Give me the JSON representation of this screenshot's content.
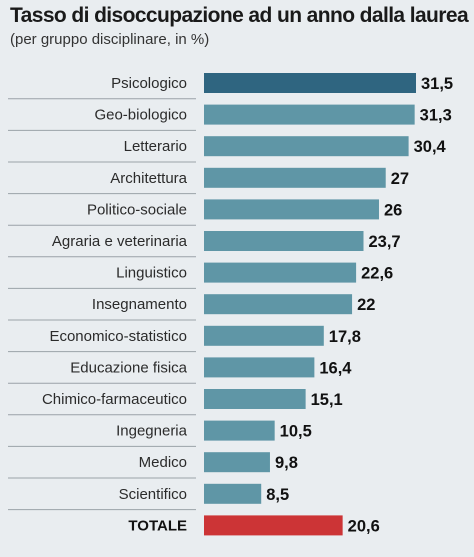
{
  "title": "Tasso di disoccupazione ad un anno dalla laurea",
  "subtitle": "(per gruppo disciplinare, in %)",
  "colors": {
    "highlight": "#2f6580",
    "bar": "#5f96a6",
    "total": "#cc3436",
    "background": "#e9edf0"
  },
  "chart_data": {
    "type": "bar",
    "orientation": "horizontal",
    "title": "Tasso di disoccupazione ad un anno dalla laurea",
    "subtitle": "(per gruppo disciplinare, in %)",
    "categories": [
      "Psicologico",
      "Geo-biologico",
      "Letterario",
      "Architettura",
      "Politico-sociale",
      "Agraria e veterinaria",
      "Linguistico",
      "Insegnamento",
      "Economico-statistico",
      "Educazione fisica",
      "Chimico-farmaceutico",
      "Ingegneria",
      "Medico",
      "Scientifico",
      "TOTALE"
    ],
    "values": [
      31.5,
      31.3,
      30.4,
      27,
      26,
      23.7,
      22.6,
      22,
      17.8,
      16.4,
      15.1,
      10.5,
      9.8,
      8.5,
      20.6
    ],
    "value_labels": [
      "31,5",
      "31,3",
      "30,4",
      "27",
      "26",
      "23,7",
      "22,6",
      "22",
      "17,8",
      "16,4",
      "15,1",
      "10,5",
      "9,8",
      "8,5",
      "20,6"
    ],
    "highlight_index": 0,
    "total_index": 14,
    "xlim": [
      0,
      31.5
    ],
    "grid": false,
    "legend": "none"
  }
}
